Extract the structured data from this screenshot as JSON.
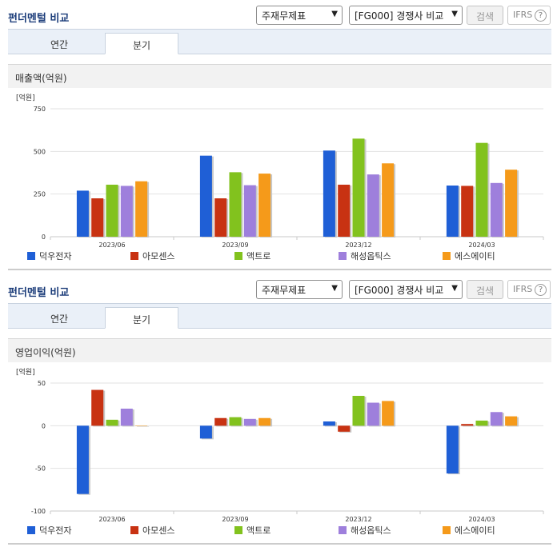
{
  "header": {
    "title": "펀더멘털 비교",
    "statement_select": "주재무제표",
    "group_select": "[FG000] 경쟁사 비교",
    "search_button": "검색",
    "ifrs_label": "IFRS",
    "help_glyph": "?"
  },
  "tabs": [
    "연간",
    "분기"
  ],
  "active_tab": "분기",
  "legend": [
    {
      "name": "덕우전자",
      "color": "#1f5fd6"
    },
    {
      "name": "아모센스",
      "color": "#c83212"
    },
    {
      "name": "액트로",
      "color": "#82c21e"
    },
    {
      "name": "해성옵틱스",
      "color": "#9e7fdc"
    },
    {
      "name": "에스에이티",
      "color": "#f59a1a"
    }
  ],
  "chart_data": [
    {
      "type": "bar",
      "title": "매출액(억원)",
      "unit_label": "[억원]",
      "categories": [
        "2023/06",
        "2023/09",
        "2023/12",
        "2024/03"
      ],
      "ylim": [
        0,
        750
      ],
      "yticks": [
        "0",
        "250",
        "500",
        "750"
      ],
      "ytick_values": [
        0,
        250,
        500,
        750
      ],
      "series": [
        {
          "name": "덕우전자",
          "values": [
            270,
            475,
            505,
            300
          ]
        },
        {
          "name": "아모센스",
          "values": [
            225,
            225,
            305,
            298
          ]
        },
        {
          "name": "액트로",
          "values": [
            305,
            378,
            575,
            550
          ]
        },
        {
          "name": "해성옵틱스",
          "values": [
            298,
            302,
            365,
            315
          ]
        },
        {
          "name": "에스에이티",
          "values": [
            325,
            370,
            430,
            393
          ]
        }
      ]
    },
    {
      "type": "bar",
      "title": "영업이익(억원)",
      "unit_label": "[억원]",
      "categories": [
        "2023/06",
        "2023/09",
        "2023/12",
        "2024/03"
      ],
      "ylim": [
        -100,
        50
      ],
      "yticks": [
        "-100",
        "-50",
        "0",
        "50"
      ],
      "ytick_values": [
        -100,
        -50,
        0,
        50
      ],
      "series": [
        {
          "name": "덕우전자",
          "values": [
            -80,
            -15,
            5,
            -56
          ]
        },
        {
          "name": "아모센스",
          "values": [
            42,
            9,
            -7,
            2
          ]
        },
        {
          "name": "액트로",
          "values": [
            7,
            10,
            35,
            6
          ]
        },
        {
          "name": "해성옵틱스",
          "values": [
            20,
            8,
            27,
            16
          ]
        },
        {
          "name": "에스에이티",
          "values": [
            0,
            9,
            29,
            11
          ]
        }
      ]
    }
  ]
}
